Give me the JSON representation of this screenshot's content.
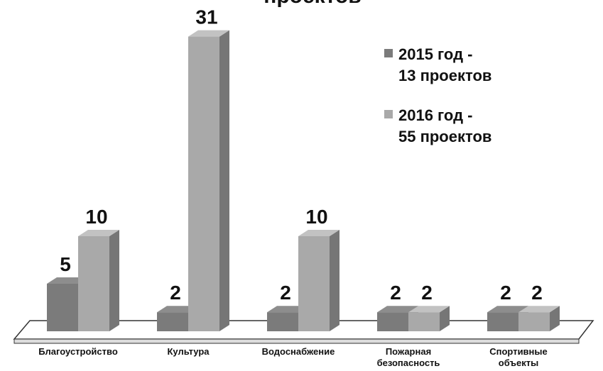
{
  "chart_data": {
    "type": "bar3d",
    "title": "проектов",
    "categories": [
      "Благоустройство",
      "Культура",
      "Водоснабжение",
      "Пожарная\nбезопасность",
      "Спортивные\nобъекты"
    ],
    "series": [
      {
        "name": "2015 год -\n13 проектов",
        "color": "#7b7b7b",
        "values": [
          5,
          2,
          2,
          2,
          2
        ]
      },
      {
        "name": "2016 год -\n55 проектов",
        "color": "#a9a9a9",
        "values": [
          10,
          31,
          10,
          2,
          2
        ]
      }
    ]
  }
}
